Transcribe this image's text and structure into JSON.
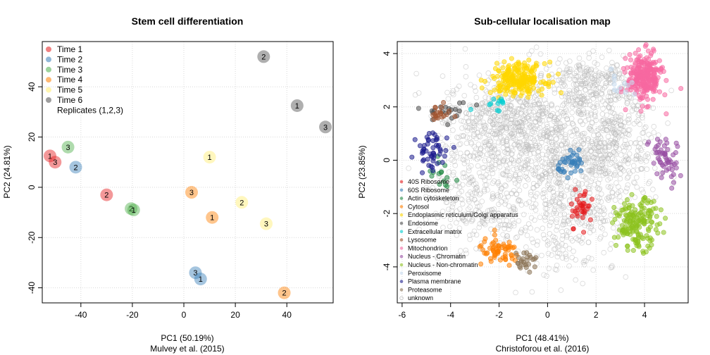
{
  "chart_data": [
    {
      "type": "scatter",
      "title": "Stem cell differentiation",
      "xlabel": "PC1 (50.19%)",
      "ylabel": "PC2 (24.81%)",
      "subtitle": "Mulvey et al. (2015)",
      "xlim": [
        -55,
        58
      ],
      "ylim": [
        -46,
        58
      ],
      "xticks": [
        -40,
        -20,
        0,
        20,
        40
      ],
      "yticks": [
        -40,
        -20,
        0,
        20,
        40
      ],
      "grid": true,
      "legend_position": "top-left",
      "legend_note": "Replicates (1,2,3)",
      "series": [
        {
          "name": "Time 1",
          "color": "#E41A1C",
          "points": [
            {
              "x": -52,
              "y": 12.5,
              "label": "1"
            },
            {
              "x": -50,
              "y": 10,
              "label": "3"
            },
            {
              "x": -30,
              "y": -3,
              "label": "2"
            }
          ]
        },
        {
          "name": "Time 2",
          "color": "#377EB8",
          "points": [
            {
              "x": -42,
              "y": 8,
              "label": "2"
            },
            {
              "x": 4.5,
              "y": -34,
              "label": "3"
            },
            {
              "x": 6.5,
              "y": -36.5,
              "label": "1"
            }
          ]
        },
        {
          "name": "Time 3",
          "color": "#4DAF4A",
          "points": [
            {
              "x": -45,
              "y": 16,
              "label": "3"
            },
            {
              "x": -20.5,
              "y": -8.5,
              "label": "2"
            },
            {
              "x": -19.5,
              "y": -9,
              "label": "1"
            }
          ]
        },
        {
          "name": "Time 4",
          "color": "#FF7F00",
          "points": [
            {
              "x": 3,
              "y": -2,
              "label": "3"
            },
            {
              "x": 11,
              "y": -12,
              "label": "1"
            },
            {
              "x": 39,
              "y": -42,
              "label": "2"
            }
          ]
        },
        {
          "name": "Time 5",
          "color": "#FFED6F",
          "points": [
            {
              "x": 10,
              "y": 12,
              "label": "1"
            },
            {
              "x": 22.5,
              "y": -6,
              "label": "2"
            },
            {
              "x": 32,
              "y": -14.5,
              "label": "3"
            }
          ]
        },
        {
          "name": "Time 6",
          "color": "#4D4D4D",
          "points": [
            {
              "x": 31,
              "y": 52,
              "label": "2"
            },
            {
              "x": 44,
              "y": 32.5,
              "label": "1"
            },
            {
              "x": 55,
              "y": 24,
              "label": "3"
            }
          ]
        }
      ]
    },
    {
      "type": "scatter",
      "title": "Sub-cellular localisation map",
      "xlabel": "PC1 (48.41%)",
      "ylabel": "PC2 (23.85%)",
      "subtitle": "Christoforou et al. (2016)",
      "xlim": [
        -6.2,
        5.8
      ],
      "ylim": [
        -5.35,
        4.45
      ],
      "xticks": [
        -6,
        -4,
        -2,
        0,
        2,
        4
      ],
      "yticks": [
        -4,
        -2,
        0,
        2,
        4
      ],
      "grid": true,
      "legend_position": "bottom-left",
      "series": [
        {
          "name": "40S Ribosome",
          "color": "#E41A1C",
          "center": [
            1.4,
            -1.75
          ],
          "spread": [
            0.25,
            0.35
          ],
          "n": 35
        },
        {
          "name": "60S Ribosome",
          "color": "#377EB8",
          "center": [
            1.05,
            -0.15
          ],
          "spread": [
            0.3,
            0.2
          ],
          "n": 40
        },
        {
          "name": "Actin cytoskeleton",
          "color": "#238B45",
          "center": [
            -4.3,
            -0.6
          ],
          "spread": [
            0.35,
            0.3
          ],
          "n": 15
        },
        {
          "name": "Cytosol",
          "color": "#FF7F00",
          "center": [
            -2.0,
            -3.45
          ],
          "spread": [
            0.45,
            0.25
          ],
          "n": 60
        },
        {
          "name": "Endoplasmic reticulum/Golgi apparatus",
          "color": "#FFD700",
          "center": [
            -1.2,
            3.05
          ],
          "spread": [
            0.55,
            0.3
          ],
          "n": 220
        },
        {
          "name": "Endosome",
          "color": "#4D4D4D",
          "center": [
            -4.1,
            1.8
          ],
          "spread": [
            0.5,
            0.2
          ],
          "n": 20
        },
        {
          "name": "Extracellular matrix",
          "color": "#00CED1",
          "center": [
            -2.2,
            2.2
          ],
          "spread": [
            0.4,
            0.15
          ],
          "n": 12
        },
        {
          "name": "Lysosome",
          "color": "#A0522D",
          "center": [
            -4.5,
            1.75
          ],
          "spread": [
            0.25,
            0.15
          ],
          "n": 20
        },
        {
          "name": "Mitochondrion",
          "color": "#F768A1",
          "center": [
            4.0,
            3.1
          ],
          "spread": [
            0.35,
            0.45
          ],
          "n": 260
        },
        {
          "name": "Nucleus - Chromatin",
          "color": "#984EA3",
          "center": [
            4.8,
            0.0
          ],
          "spread": [
            0.3,
            0.5
          ],
          "n": 55
        },
        {
          "name": "Nucleus - Non-chromatin",
          "color": "#8DC21F",
          "center": [
            3.7,
            -2.4
          ],
          "spread": [
            0.45,
            0.45
          ],
          "n": 170
        },
        {
          "name": "Peroxisome",
          "color": "#C6DBEF",
          "center": [
            2.9,
            2.9
          ],
          "spread": [
            0.3,
            0.3
          ],
          "n": 12
        },
        {
          "name": "Plasma membrane",
          "color": "#1A1A8C",
          "center": [
            -4.7,
            0.35
          ],
          "spread": [
            0.35,
            0.35
          ],
          "n": 50
        },
        {
          "name": "Proteasome",
          "color": "#8B7355",
          "center": [
            -0.9,
            -3.75
          ],
          "spread": [
            0.25,
            0.2
          ],
          "n": 25
        },
        {
          "name": "unknown",
          "color": "#CCCCCC",
          "n": 2200
        }
      ]
    }
  ]
}
